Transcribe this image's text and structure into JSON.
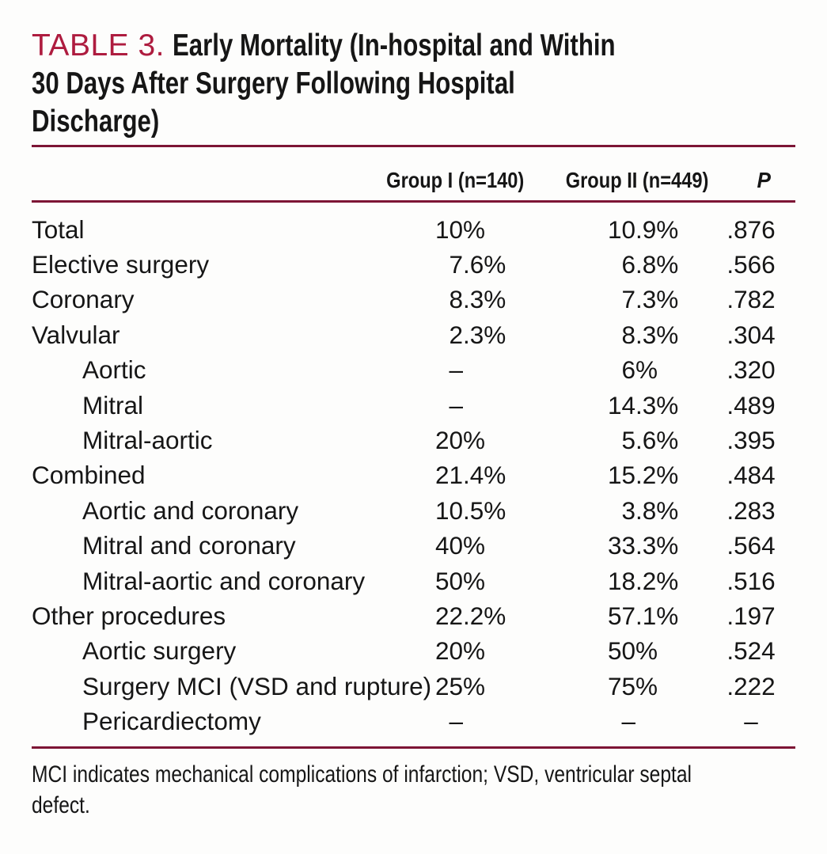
{
  "colors": {
    "accent": "#AE1C3F",
    "rule": "#7D1535",
    "text": "#161616"
  },
  "title": {
    "label": "TABLE 3.",
    "lines": [
      "Early Mortality (In-hospital and Within",
      "30 Days After Surgery Following Hospital",
      "Discharge)"
    ]
  },
  "table": {
    "columns": {
      "group1": "Group I (n=140)",
      "group2": "Group II (n=449)",
      "p": "P"
    },
    "rows": [
      {
        "label": "Total",
        "indent": false,
        "g1": "10%",
        "g2": "10.9%",
        "p": ".876"
      },
      {
        "label": "Elective surgery",
        "indent": false,
        "g1": "7.6%",
        "g2": "6.8%",
        "p": ".566"
      },
      {
        "label": "Coronary",
        "indent": false,
        "g1": "8.3%",
        "g2": "7.3%",
        "p": ".782"
      },
      {
        "label": "Valvular",
        "indent": false,
        "g1": "2.3%",
        "g2": "8.3%",
        "p": ".304"
      },
      {
        "label": "Aortic",
        "indent": true,
        "g1": "–",
        "g2": "6%",
        "p": ".320"
      },
      {
        "label": "Mitral",
        "indent": true,
        "g1": "–",
        "g2": "14.3%",
        "p": ".489"
      },
      {
        "label": "Mitral-aortic",
        "indent": true,
        "g1": "20%",
        "g2": "5.6%",
        "p": ".395"
      },
      {
        "label": "Combined",
        "indent": false,
        "g1": "21.4%",
        "g2": "15.2%",
        "p": ".484"
      },
      {
        "label": "Aortic and coronary",
        "indent": true,
        "g1": "10.5%",
        "g2": "3.8%",
        "p": ".283"
      },
      {
        "label": "Mitral and coronary",
        "indent": true,
        "g1": "40%",
        "g2": "33.3%",
        "p": ".564"
      },
      {
        "label": "Mitral-aortic and coronary",
        "indent": true,
        "g1": "50%",
        "g2": "18.2%",
        "p": ".516"
      },
      {
        "label": "Other procedures",
        "indent": false,
        "g1": "22.2%",
        "g2": "57.1%",
        "p": ".197"
      },
      {
        "label": "Aortic surgery",
        "indent": true,
        "g1": "20%",
        "g2": "50%",
        "p": ".524"
      },
      {
        "label": "Surgery MCI (VSD and rupture)",
        "indent": true,
        "g1": "25%",
        "g2": "75%",
        "p": ".222"
      },
      {
        "label": "Pericardiectomy",
        "indent": true,
        "g1": "–",
        "g2": "–",
        "p": "–"
      }
    ]
  },
  "footnote": {
    "lines": [
      "MCI indicates mechanical complications of infarction; VSD, ventricular septal",
      "defect."
    ]
  }
}
